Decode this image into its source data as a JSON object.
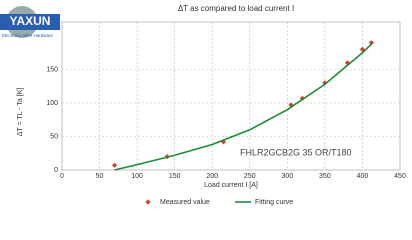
{
  "logo": {
    "name": "YAXUN",
    "tagline": "Electronic Wire Hardware"
  },
  "chart_data": {
    "type": "scatter",
    "title": "ΔT as compared to load current I",
    "y_label": "ΔT = TL - Ta [K]",
    "x_label": "Load current I [A]",
    "annotation": "FHLR2GCB2G 35 OR/T180",
    "xlim": [
      0,
      450
    ],
    "xticks": [
      0,
      50,
      100,
      150,
      200,
      250,
      300,
      350,
      400,
      450
    ],
    "ylim": [
      0,
      200
    ],
    "yticks": [
      0,
      50,
      100,
      150
    ],
    "grid": true,
    "legend": "bottom",
    "series": [
      {
        "name": "Measured value",
        "color": "#d2412a",
        "style": "marker",
        "x": [
          70,
          140,
          215,
          305,
          320,
          350,
          380,
          400,
          412
        ],
        "values": [
          7,
          20,
          42,
          97,
          107,
          130,
          160,
          180,
          190
        ]
      },
      {
        "name": "Fitting curve",
        "color": "#1e8a3a",
        "style": "line",
        "x": [
          70,
          100,
          150,
          200,
          250,
          300,
          350,
          400,
          412
        ],
        "values": [
          0,
          8,
          22,
          38,
          60,
          90,
          128,
          175,
          188
        ]
      }
    ]
  }
}
